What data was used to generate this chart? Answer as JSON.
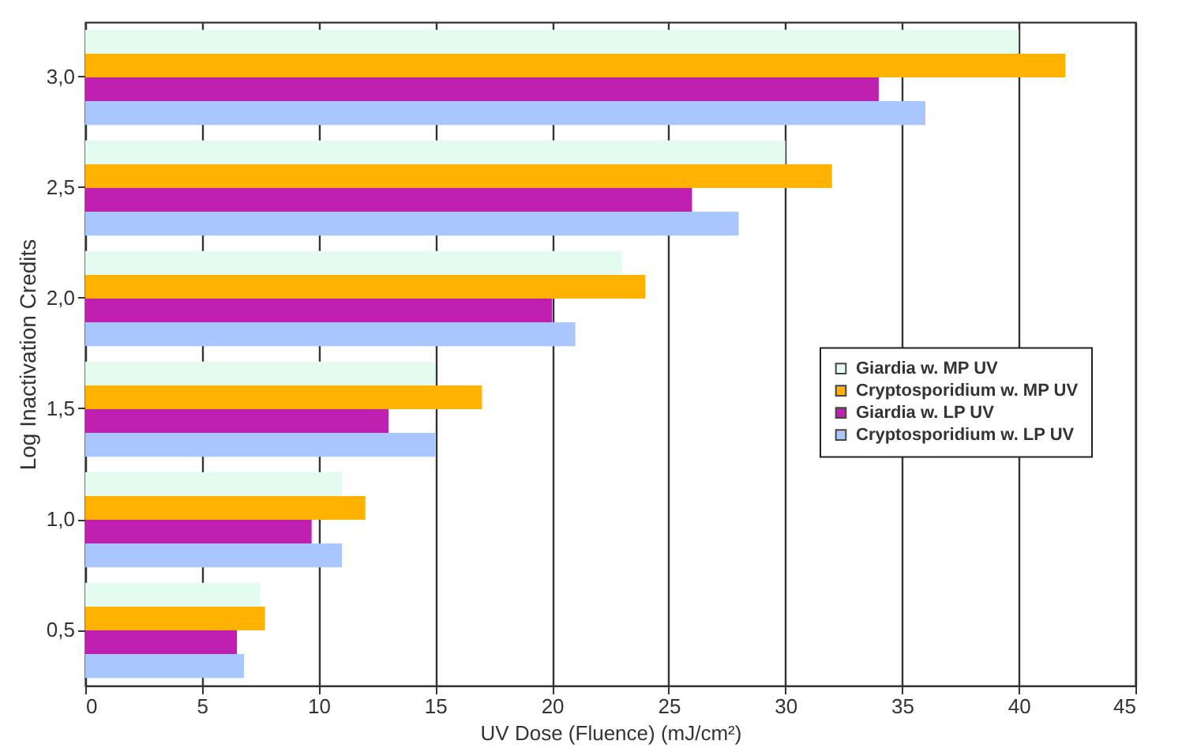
{
  "chart_data": {
    "type": "bar",
    "orientation": "horizontal",
    "xlabel": "UV Dose (Fluence) (mJ/cm²)",
    "ylabel": "Log Inactivation Credits",
    "categories": [
      "3,0",
      "2,5",
      "2,0",
      "1,5",
      "1,0",
      "0,5"
    ],
    "series": [
      {
        "name": "Giardia w. MP UV",
        "color": "#e4fbef",
        "values": [
          40,
          30,
          23,
          15,
          11,
          7.5
        ]
      },
      {
        "name": "Cryptosporidium w. MP UV",
        "color": "#ffb300",
        "values": [
          42,
          32,
          24,
          17,
          12,
          7.7
        ]
      },
      {
        "name": "Giardia w. LP UV",
        "color": "#c020b0",
        "values": [
          34,
          26,
          20,
          13,
          9.7,
          6.5
        ]
      },
      {
        "name": "Cryptosporidium w. LP UV",
        "color": "#aac6ff",
        "values": [
          36,
          28,
          21,
          15,
          11,
          6.8
        ]
      }
    ],
    "xlim": [
      0,
      45
    ],
    "xticks": [
      0,
      5,
      10,
      15,
      20,
      25,
      30,
      35,
      40,
      45
    ],
    "grid": "x",
    "legend": "right"
  }
}
